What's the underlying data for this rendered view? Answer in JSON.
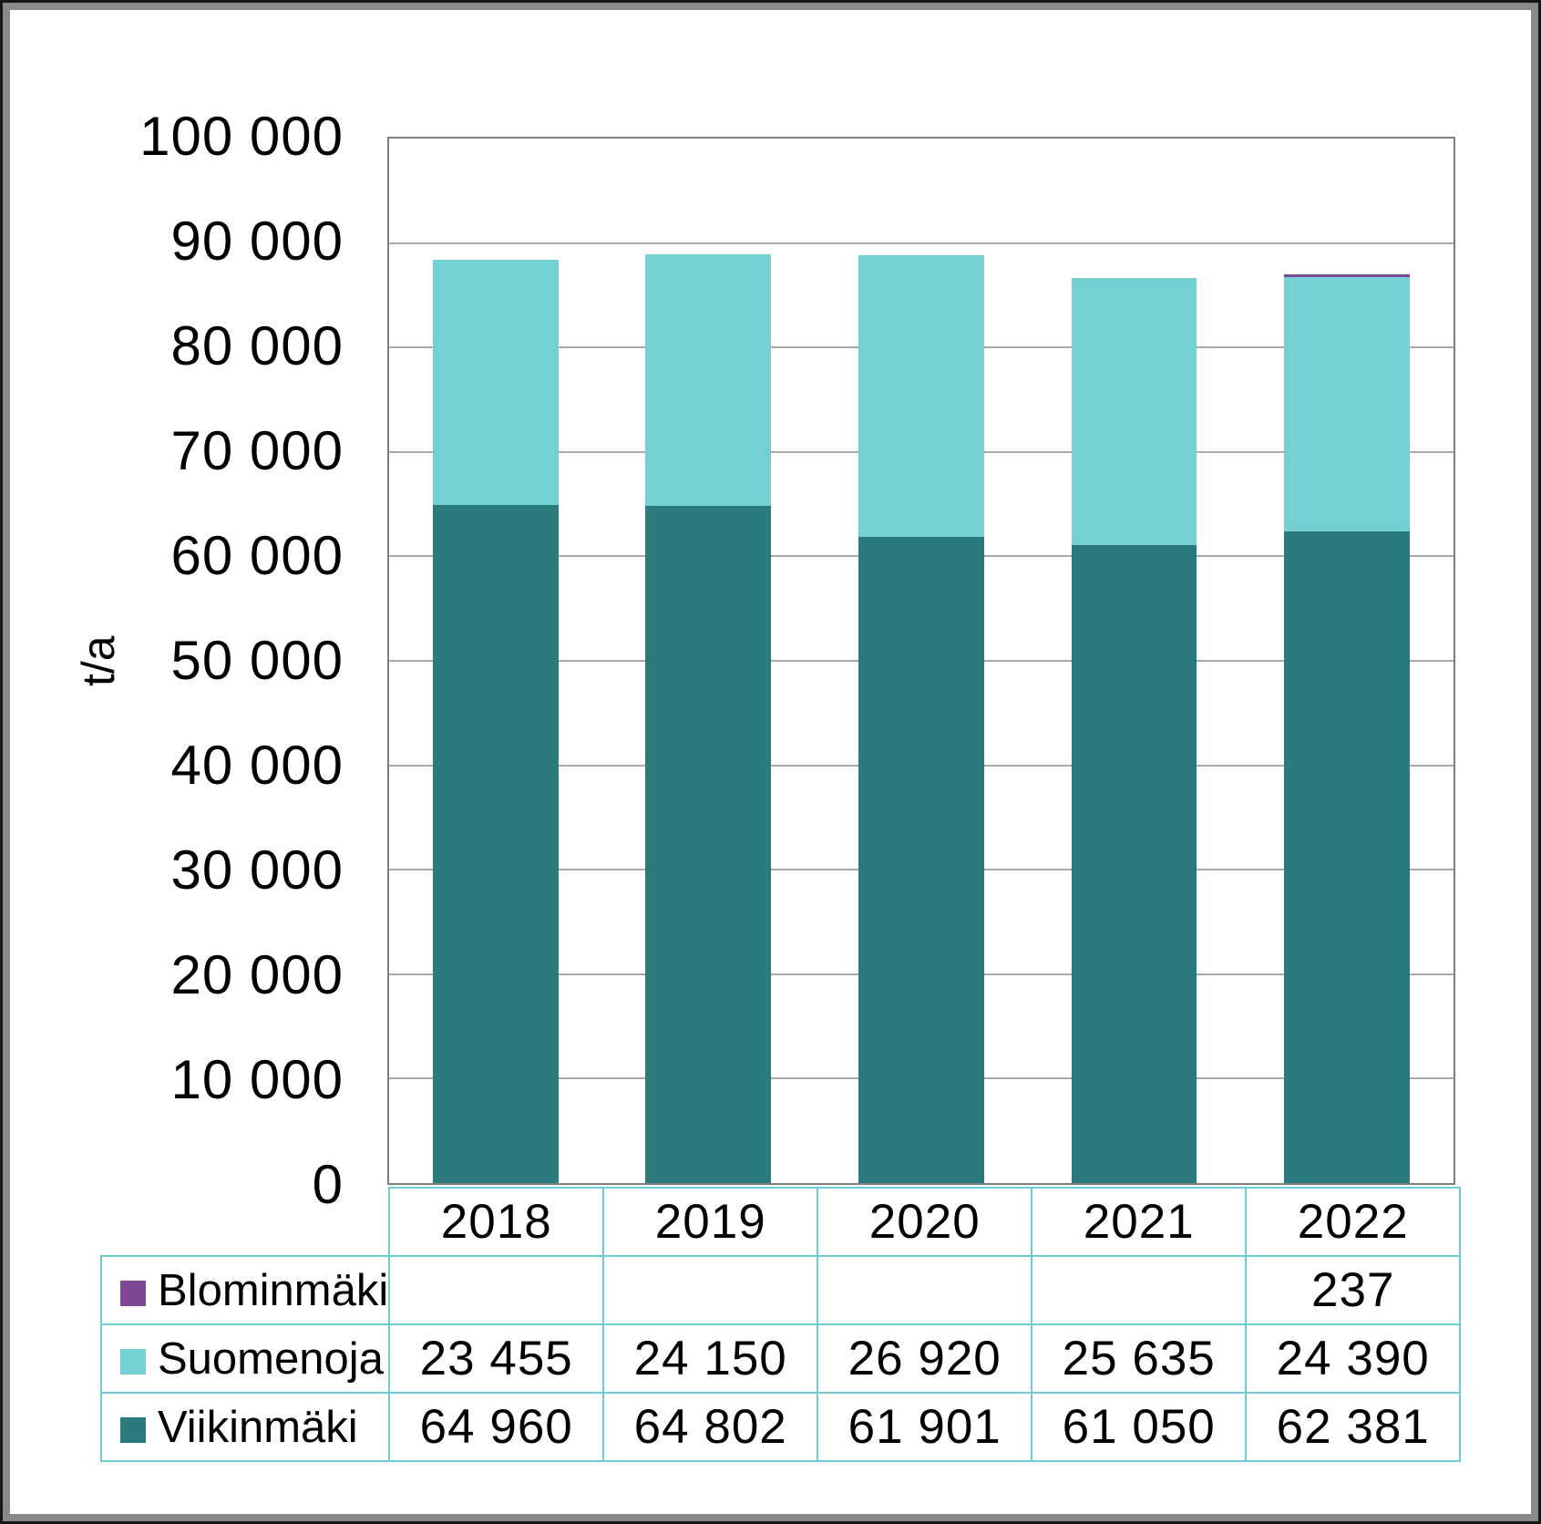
{
  "colors": {
    "viikinmaki": "#2a7b7d",
    "suomenoja": "#74d0d2",
    "blominmaki": "#7d4796",
    "table_border": "#6fccd6",
    "gridline": "#a8a8a8",
    "plot_border": "#7f7f7f",
    "frame_gray": "#8a8a8a",
    "frame_black": "#161616",
    "text": "#000000"
  },
  "chart_data": {
    "type": "bar",
    "stacked": true,
    "title": "",
    "xlabel": "",
    "ylabel": "t/a",
    "ylim": [
      0,
      100000
    ],
    "ytick_step": 10000,
    "ytick_labels_top_to_bottom": [
      "100 000",
      "90 000",
      "80 000",
      "70 000",
      "60 000",
      "50 000",
      "40 000",
      "30 000",
      "20 000",
      "10 000",
      "0"
    ],
    "grid": "horizontal",
    "legend_position": "table-left",
    "categories": [
      "2018",
      "2019",
      "2020",
      "2021",
      "2022"
    ],
    "series": [
      {
        "name": "Blominmäki",
        "color_key": "blominmaki",
        "values": [
          null,
          null,
          null,
          null,
          237
        ],
        "display": [
          "",
          "",
          "",
          "",
          "237"
        ]
      },
      {
        "name": "Suomenoja",
        "color_key": "suomenoja",
        "values": [
          23455,
          24150,
          26920,
          25635,
          24390
        ],
        "display": [
          "23 455",
          "24 150",
          "26 920",
          "25 635",
          "24 390"
        ]
      },
      {
        "name": "Viikinmäki",
        "color_key": "viikinmaki",
        "values": [
          64960,
          64802,
          61901,
          61050,
          62381
        ],
        "display": [
          "64 960",
          "64 802",
          "61 901",
          "61 050",
          "62 381"
        ]
      }
    ]
  }
}
